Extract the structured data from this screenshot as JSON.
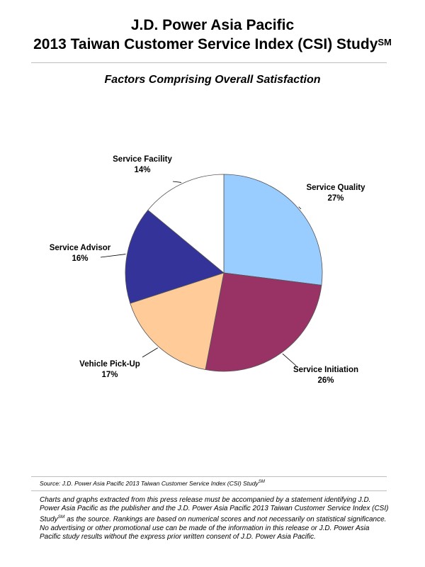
{
  "header": {
    "title_line1": "J.D. Power Asia Pacific",
    "title_line2": "2013 Taiwan Customer Service Index (CSI) Study",
    "title_sup": "SM"
  },
  "chart_data": {
    "type": "pie",
    "title": "Factors Comprising Overall Satisfaction",
    "slices": [
      {
        "label": "Service Quality",
        "value": 27,
        "value_label": "27%",
        "color": "#99CCFF"
      },
      {
        "label": "Service Initiation",
        "value": 26,
        "value_label": "26%",
        "color": "#993366"
      },
      {
        "label": "Vehicle Pick-Up",
        "value": 17,
        "value_label": "17%",
        "color": "#FFCC99"
      },
      {
        "label": "Service Advisor",
        "value": 16,
        "value_label": "16%",
        "color": "#333399"
      },
      {
        "label": "Service Facility",
        "value": 14,
        "value_label": "14%",
        "color": "#FFFFFF"
      }
    ]
  },
  "footer": {
    "source_text": "Source: J.D. Power Asia Pacific 2013 Taiwan Customer Service Index (CSI) Study",
    "source_sup": "SM",
    "disclaimer_part1": "Charts and graphs extracted from this press release must be accompanied by a statement identifying J.D. Power Asia Pacific as the publisher and the J.D. Power Asia Pacific 2013 Taiwan Customer Service Index (CSI) Study",
    "disclaimer_sup": "SM",
    "disclaimer_part2": " as the source. Rankings are based on numerical scores and not necessarily on statistical significance. No advertising or other promotional use can be made of the information in this release or J.D. Power Asia Pacific study results without the express prior written consent of J.D. Power Asia Pacific."
  }
}
